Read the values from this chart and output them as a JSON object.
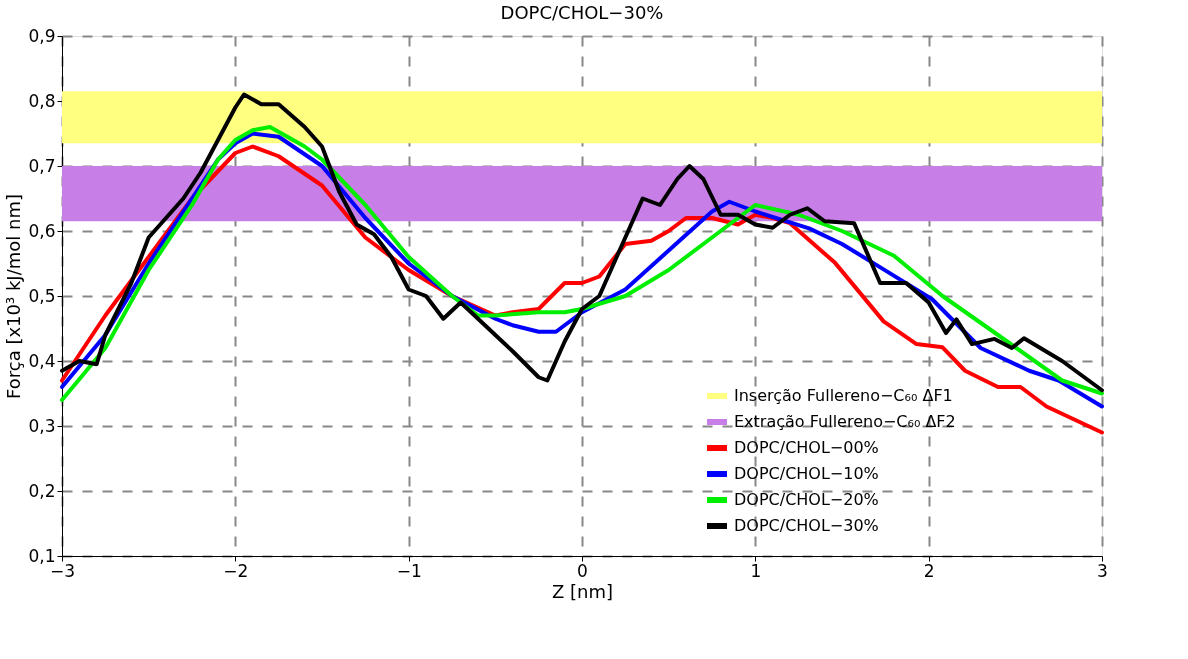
{
  "chart_data": {
    "type": "line",
    "title": "DOPC/CHOL−30%",
    "xlabel": "Z [nm]",
    "ylabel": "Força [x10³ kJ/mol nm]",
    "xlim": [
      -3,
      3
    ],
    "ylim": [
      0.1,
      0.9
    ],
    "xticks": [
      {
        "value": -3,
        "label": "−3"
      },
      {
        "value": -2,
        "label": "−2"
      },
      {
        "value": -1,
        "label": "−1"
      },
      0,
      1,
      2,
      3
    ],
    "yticks": [
      {
        "value": 0.1,
        "label": "0,1"
      },
      {
        "value": 0.2,
        "label": "0,2"
      },
      {
        "value": 0.3,
        "label": "0,3"
      },
      {
        "value": 0.4,
        "label": "0,4"
      },
      {
        "value": 0.5,
        "label": "0,5"
      },
      {
        "value": 0.6,
        "label": "0,6"
      },
      {
        "value": 0.7,
        "label": "0,7"
      },
      {
        "value": 0.8,
        "label": "0,8"
      },
      {
        "value": 0.9,
        "label": "0,9"
      }
    ],
    "grid": true,
    "legend": "bottom right",
    "line_style": "solid",
    "marker": "none",
    "bands": [
      {
        "axis": "y",
        "from": 0.735,
        "to": 0.815,
        "label": "Inserção Fullereno−C₆₀ ΔF1",
        "color": "#ffff80"
      },
      {
        "axis": "y",
        "from": 0.615,
        "to": 0.7,
        "label": "Extração Fullereno−C₆₀ ΔF2",
        "color": "#c77ee6"
      }
    ],
    "series": [
      {
        "name": "DOPC/CHOL−00%",
        "color": "#ff0000",
        "x": [
          -3,
          -2.75,
          -2.5,
          -2.25,
          -2.0,
          -1.9,
          -1.75,
          -1.5,
          -1.25,
          -1.0,
          -0.75,
          -0.5,
          -0.4,
          -0.25,
          -0.1,
          0,
          0.1,
          0.25,
          0.4,
          0.5,
          0.6,
          0.75,
          0.9,
          1.0,
          1.1,
          1.2,
          1.46,
          1.74,
          1.93,
          2.08,
          2.21,
          2.4,
          2.53,
          2.68,
          3.0
        ],
        "values": [
          0.37,
          0.47,
          0.56,
          0.65,
          0.72,
          0.73,
          0.715,
          0.67,
          0.59,
          0.54,
          0.5,
          0.47,
          0.475,
          0.48,
          0.52,
          0.52,
          0.53,
          0.58,
          0.585,
          0.6,
          0.62,
          0.62,
          0.61,
          0.625,
          0.62,
          0.612,
          0.551,
          0.461,
          0.426,
          0.421,
          0.385,
          0.36,
          0.36,
          0.33,
          0.29
        ]
      },
      {
        "name": "DOPC/CHOL−10%",
        "color": "#0000ff",
        "x": [
          -3,
          -2.75,
          -2.5,
          -2.25,
          -2.1,
          -2.0,
          -1.9,
          -1.75,
          -1.5,
          -1.25,
          -1.0,
          -0.75,
          -0.5,
          -0.4,
          -0.25,
          -0.15,
          0,
          0.25,
          0.5,
          0.75,
          0.85,
          1.0,
          1.31,
          1.5,
          1.74,
          2.02,
          2.3,
          2.58,
          2.75,
          3.0
        ],
        "values": [
          0.36,
          0.44,
          0.55,
          0.65,
          0.71,
          0.735,
          0.75,
          0.745,
          0.7,
          0.62,
          0.55,
          0.5,
          0.465,
          0.455,
          0.445,
          0.445,
          0.475,
          0.51,
          0.57,
          0.63,
          0.645,
          0.63,
          0.604,
          0.58,
          0.541,
          0.495,
          0.42,
          0.385,
          0.37,
          0.33
        ]
      },
      {
        "name": "DOPC/CHOL−20%",
        "color": "#00ee00",
        "x": [
          -3,
          -2.75,
          -2.5,
          -2.25,
          -2.1,
          -2.0,
          -1.9,
          -1.8,
          -1.6,
          -1.5,
          -1.25,
          -1.0,
          -0.75,
          -0.6,
          -0.5,
          -0.25,
          -0.1,
          0,
          0.25,
          0.5,
          0.75,
          1.0,
          1.25,
          1.5,
          1.8,
          2.08,
          2.4,
          2.77,
          3.0
        ],
        "values": [
          0.34,
          0.42,
          0.54,
          0.64,
          0.71,
          0.74,
          0.755,
          0.76,
          0.73,
          0.71,
          0.64,
          0.56,
          0.5,
          0.47,
          0.47,
          0.475,
          0.475,
          0.48,
          0.5,
          0.54,
          0.59,
          0.64,
          0.625,
          0.6,
          0.562,
          0.5,
          0.44,
          0.37,
          0.35
        ]
      },
      {
        "name": "DOPC/CHOL−30%",
        "color": "#000000",
        "x": [
          -3,
          -2.9,
          -2.8,
          -2.75,
          -2.6,
          -2.5,
          -2.4,
          -2.3,
          -2.2,
          -2.1,
          -2.0,
          -1.95,
          -1.85,
          -1.75,
          -1.6,
          -1.5,
          -1.4,
          -1.3,
          -1.2,
          -1.1,
          -1.0,
          -0.9,
          -0.8,
          -0.7,
          -0.6,
          -0.5,
          -0.4,
          -0.25,
          -0.2,
          -0.1,
          0,
          0.1,
          0.2,
          0.3,
          0.35,
          0.45,
          0.55,
          0.62,
          0.7,
          0.8,
          0.9,
          1.0,
          1.1,
          1.2,
          1.3,
          1.4,
          1.57,
          1.72,
          1.87,
          2.0,
          2.1,
          2.16,
          2.25,
          2.38,
          2.48,
          2.55,
          2.77,
          3.0
        ],
        "values": [
          0.385,
          0.4,
          0.395,
          0.44,
          0.52,
          0.59,
          0.62,
          0.65,
          0.69,
          0.74,
          0.79,
          0.81,
          0.795,
          0.795,
          0.76,
          0.73,
          0.66,
          0.61,
          0.595,
          0.56,
          0.51,
          0.5,
          0.465,
          0.49,
          0.465,
          0.44,
          0.415,
          0.375,
          0.37,
          0.43,
          0.48,
          0.5,
          0.56,
          0.62,
          0.65,
          0.64,
          0.68,
          0.7,
          0.68,
          0.625,
          0.625,
          0.61,
          0.605,
          0.625,
          0.635,
          0.615,
          0.612,
          0.52,
          0.52,
          0.49,
          0.443,
          0.464,
          0.426,
          0.434,
          0.42,
          0.435,
          0.4,
          0.355
        ]
      }
    ]
  }
}
